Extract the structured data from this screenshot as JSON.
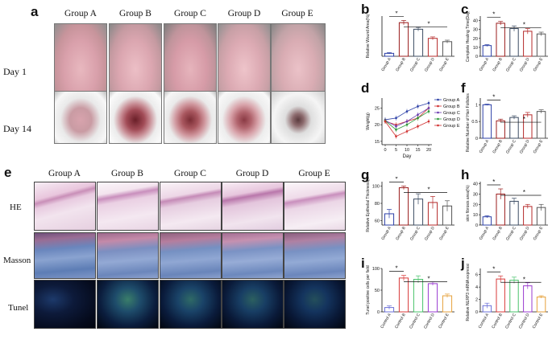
{
  "panel_letters": {
    "a": "a",
    "b": "b",
    "c": "c",
    "d": "d",
    "e": "e",
    "f": "f",
    "g": "g",
    "h": "h",
    "i": "i",
    "j": "j"
  },
  "groups": [
    "Group A",
    "Group B",
    "Group C",
    "Group D",
    "Group E"
  ],
  "days": {
    "day1": "Day 1",
    "day14": "Day 14"
  },
  "stains": {
    "he": "HE",
    "masson": "Masson",
    "tunel": "Tunel"
  },
  "colors": {
    "a": "#2b3fa6",
    "b": "#9b1c1c",
    "c": "#3c4c63",
    "d": "#b52a2a",
    "e": "#555555"
  },
  "chart_data": [
    {
      "id": "b",
      "type": "bar",
      "ylabel": "Relative Wound Area(%)",
      "categories": [
        "Group A",
        "Group B",
        "Group C",
        "Group D",
        "Group E"
      ],
      "values": [
        8,
        92,
        74,
        49,
        40
      ],
      "errors": [
        2,
        6,
        5,
        4,
        4
      ],
      "ylim": [
        0,
        110
      ],
      "yticks": [],
      "sig": "*"
    },
    {
      "id": "c",
      "type": "bar",
      "ylabel": "Complete Healing Time(Day)",
      "categories": [
        "Group A",
        "Group B",
        "Group C",
        "Group D",
        "Group E"
      ],
      "values": [
        12,
        37,
        31,
        28,
        25
      ],
      "errors": [
        1,
        2,
        3,
        3,
        2
      ],
      "ylim": [
        0,
        45
      ],
      "yticks": [
        0,
        10,
        20,
        30,
        40
      ],
      "sig": "*"
    },
    {
      "id": "d",
      "type": "line",
      "ylabel": "Weight(g)",
      "xlabel": "Day",
      "x": [
        0,
        5,
        10,
        15,
        20
      ],
      "ylim": [
        14,
        28
      ],
      "yticks": [
        15,
        20,
        25
      ],
      "xticks": [
        0,
        5,
        10,
        15,
        20
      ],
      "series": [
        {
          "name": "Group A",
          "values": [
            21.5,
            22,
            24,
            25.5,
            26.5
          ]
        },
        {
          "name": "Group B",
          "values": [
            21,
            20,
            21,
            22,
            25
          ]
        },
        {
          "name": "Group C",
          "values": [
            21.3,
            19.5,
            21,
            23,
            25
          ]
        },
        {
          "name": "Group D",
          "values": [
            21.2,
            18.5,
            20,
            22,
            24
          ]
        },
        {
          "name": "Group E",
          "values": [
            21,
            16.5,
            18,
            19.5,
            21
          ]
        }
      ]
    },
    {
      "id": "f",
      "type": "bar",
      "ylabel": "Relative Number of Hair Follicles(fold)",
      "categories": [
        "Group A",
        "Group B",
        "Group C",
        "Group D",
        "Group E"
      ],
      "values": [
        1.0,
        0.52,
        0.62,
        0.7,
        0.8
      ],
      "errors": [
        0.02,
        0.05,
        0.05,
        0.07,
        0.05
      ],
      "ylim": [
        0,
        1.2
      ],
      "yticks": [
        0,
        0.5,
        1.0
      ],
      "sig": "*"
    },
    {
      "id": "g",
      "type": "bar",
      "ylabel": "Relative Epithelial Thickness(%)",
      "categories": [
        "Group A",
        "Group B",
        "Group C",
        "Group D",
        "Group E"
      ],
      "values": [
        68,
        98,
        85,
        81,
        77
      ],
      "errors": [
        5,
        2,
        6,
        7,
        6
      ],
      "ylim": [
        55,
        105
      ],
      "yticks": [
        60,
        80,
        100
      ],
      "sig": "*"
    },
    {
      "id": "h",
      "type": "bar",
      "ylabel": "skin fibrosis area(%)",
      "categories": [
        "Group A",
        "Group B",
        "Group C",
        "Group D",
        "Group E"
      ],
      "values": [
        8,
        30,
        23,
        18,
        17
      ],
      "errors": [
        1,
        5,
        3,
        2,
        3
      ],
      "ylim": [
        0,
        42
      ],
      "yticks": [
        0,
        10,
        20,
        30,
        40
      ],
      "sig": "*"
    },
    {
      "id": "i",
      "type": "bar",
      "ylabel": "Tunel positive cells per field",
      "categories": [
        "Control A",
        "Control B",
        "Control C",
        "Control D",
        "Control E"
      ],
      "values": [
        10,
        78,
        75,
        65,
        37
      ],
      "errors": [
        4,
        6,
        8,
        4,
        4
      ],
      "ylim": [
        0,
        100
      ],
      "yticks": [
        0,
        50,
        100
      ],
      "sig": "*"
    },
    {
      "id": "j",
      "type": "bar",
      "ylabel": "Relative NLRP3 mRNA expression",
      "categories": [
        "Control A",
        "Control B",
        "Control C",
        "Control D",
        "Control E"
      ],
      "values": [
        1.0,
        5.3,
        5.1,
        4.2,
        2.4
      ],
      "errors": [
        0.4,
        0.5,
        0.5,
        0.5,
        0.2
      ],
      "ylim": [
        0,
        7
      ],
      "yticks": [
        0,
        2,
        4,
        6
      ],
      "sig": "*"
    }
  ]
}
